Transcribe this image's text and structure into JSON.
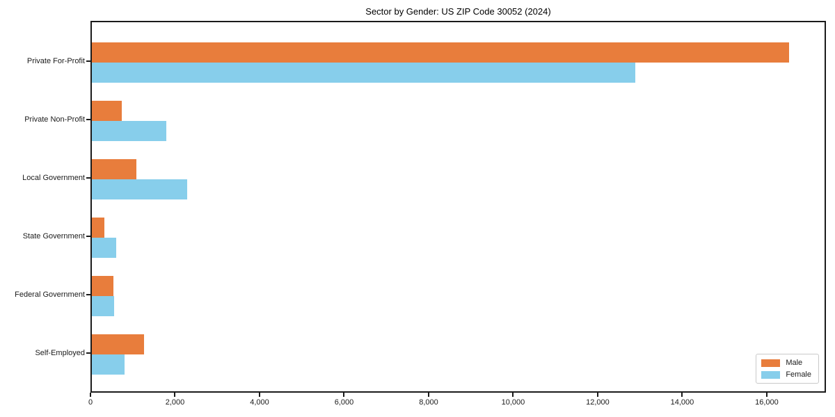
{
  "title": "Sector by Gender: US ZIP Code 30052 (2024)",
  "chart_data": {
    "type": "bar",
    "orientation": "horizontal",
    "title": "Sector by Gender: US ZIP Code 30052 (2024)",
    "xlabel": "",
    "ylabel": "",
    "categories": [
      "Private For-Profit",
      "Private Non-Profit",
      "Local Government",
      "State Government",
      "Federal Government",
      "Self-Employed"
    ],
    "series": [
      {
        "name": "Male",
        "color": "#e87d3c",
        "values": [
          16550,
          710,
          1050,
          300,
          510,
          1240
        ]
      },
      {
        "name": "Female",
        "color": "#87ceeb",
        "values": [
          12900,
          1760,
          2270,
          580,
          530,
          780
        ]
      }
    ],
    "xlim": [
      0,
      17400
    ],
    "xticks": [
      0,
      2000,
      4000,
      6000,
      8000,
      10000,
      12000,
      14000,
      16000
    ],
    "xtick_labels": [
      "0",
      "2,000",
      "4,000",
      "6,000",
      "8,000",
      "10,000",
      "12,000",
      "14,000",
      "16,000"
    ],
    "grid": false,
    "legend": {
      "position": "lower right"
    }
  },
  "colors": {
    "male": "#e87d3c",
    "female": "#87ceeb",
    "spine": "#1a1a1a",
    "background": "#ffffff"
  }
}
